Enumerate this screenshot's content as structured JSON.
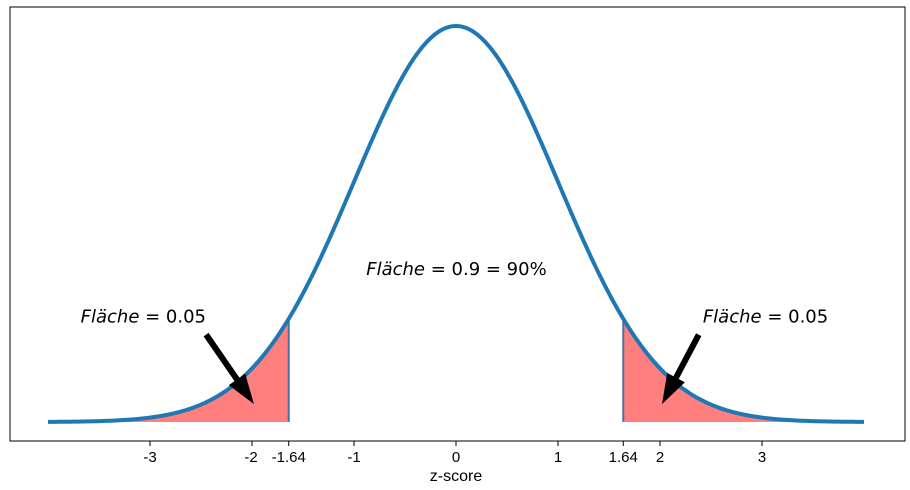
{
  "chart_data": {
    "type": "area",
    "title": "",
    "xlabel": "z-score",
    "ylabel": "",
    "xlim": [
      -4.0,
      4.0
    ],
    "ylim": [
      0,
      0.42
    ],
    "grid": false,
    "series": [
      {
        "values_from": "standard normal pdf",
        "color": "#1f77b4"
      }
    ],
    "x_ticks": [
      {
        "value": -3,
        "label": "-3"
      },
      {
        "value": -2,
        "label": "-2"
      },
      {
        "value": -1.64,
        "label": "-1.64"
      },
      {
        "value": -1,
        "label": "-1"
      },
      {
        "value": 0,
        "label": "0"
      },
      {
        "value": 1,
        "label": "1"
      },
      {
        "value": 1.64,
        "label": "1.64"
      },
      {
        "value": 2,
        "label": "2"
      },
      {
        "value": 3,
        "label": "3"
      }
    ],
    "shaded_regions": [
      {
        "from": -4.0,
        "to": -1.64,
        "color": "#ff7f7f"
      },
      {
        "from": 1.64,
        "to": 4.0,
        "color": "#ff7f7f"
      }
    ],
    "annotations": [
      {
        "id": "left",
        "name": "Fläche",
        "value": "0.05",
        "text_x": -3.68,
        "text_y": 0.1,
        "arrow_from": [
          -2.45,
          0.088
        ],
        "arrow_to": [
          -1.98,
          0.018
        ]
      },
      {
        "id": "center",
        "name": "Fläche",
        "value": "0.9 = 90%",
        "text_x": -0.88,
        "text_y": 0.148
      },
      {
        "id": "right",
        "name": "Fläche",
        "value": "0.05",
        "text_x": 2.42,
        "text_y": 0.1,
        "arrow_from": [
          2.38,
          0.088
        ],
        "arrow_to": [
          2.02,
          0.018
        ]
      }
    ]
  }
}
